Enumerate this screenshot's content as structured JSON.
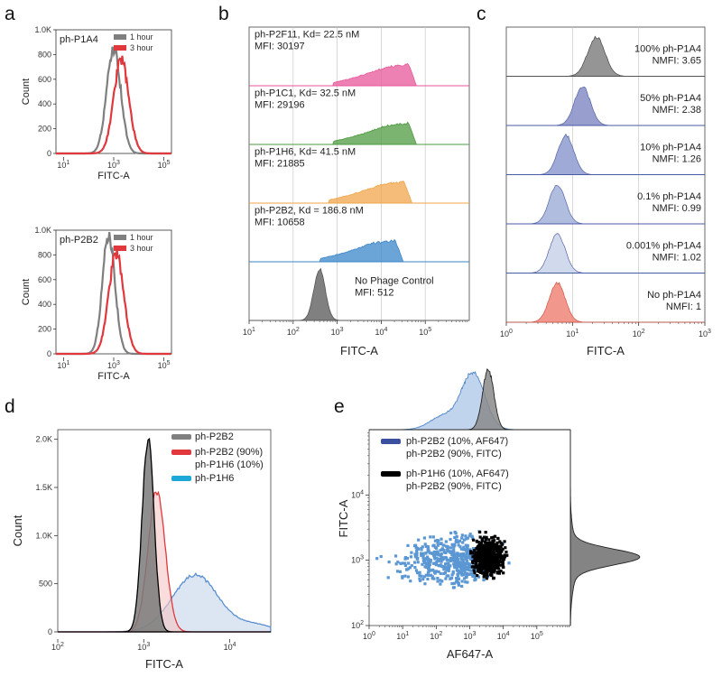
{
  "colors": {
    "gray": "#7f7f7f",
    "red": "#e0383c",
    "pink": "#e8579a",
    "green": "#4f9a41",
    "orange": "#f0a54b",
    "blue": "#3a85c9",
    "darkgray": "#555555",
    "black": "#000000",
    "scatter_blue": "#5b97d3",
    "navy": "#3c50a0"
  },
  "panel_labels": [
    "a",
    "b",
    "c",
    "d",
    "e"
  ],
  "chart_data": [
    {
      "panel": "a",
      "type": "area",
      "title": "ph-P1A4",
      "xlabel": "FITC-A",
      "ylabel": "Count",
      "xscale": "log",
      "xlim": [
        5,
        200000
      ],
      "ylim": [
        0,
        1000
      ],
      "yticks": [
        "0",
        "200",
        "400",
        "600",
        "800",
        "1.0K"
      ],
      "xticks": [
        "10^1",
        "10^3",
        "10^5"
      ],
      "legend": [
        "1 hour",
        "3 hour"
      ],
      "series": [
        {
          "name": "1 hour",
          "mean_log10": 3.0,
          "sd_log10": 0.28,
          "peak": 850
        },
        {
          "name": "3 hour",
          "mean_log10": 3.3,
          "sd_log10": 0.3,
          "peak": 760
        }
      ]
    },
    {
      "panel": "a2",
      "type": "area",
      "title": "ph-P2B2",
      "xlabel": "FITC-A",
      "ylabel": "Count",
      "xscale": "log",
      "xlim": [
        5,
        200000
      ],
      "ylim": [
        0,
        1000
      ],
      "yticks": [
        "0",
        "200",
        "400",
        "600",
        "800",
        "1.0K"
      ],
      "xticks": [
        "10^1",
        "10^3",
        "10^5"
      ],
      "legend": [
        "1 hour",
        "3 hour"
      ],
      "series": [
        {
          "name": "1 hour",
          "mean_log10": 2.8,
          "sd_log10": 0.25,
          "peak": 960
        },
        {
          "name": "3 hour",
          "mean_log10": 3.1,
          "sd_log10": 0.3,
          "peak": 810
        }
      ]
    },
    {
      "panel": "b",
      "type": "area",
      "xlabel": "FITC-A",
      "xscale": "log",
      "xlim": [
        10,
        1000000
      ],
      "xticks": [
        "10^1",
        "10^2",
        "10^3",
        "10^4",
        "10^5"
      ],
      "series": [
        {
          "name": "ph-P2F11, Kd= 22.5 nM",
          "mfi": "MFI: 30197",
          "color": "pink",
          "lo": 2.9,
          "hi": 4.8
        },
        {
          "name": "ph-P1C1, Kd= 32.5 nM",
          "mfi": "MFI: 29196",
          "color": "green",
          "lo": 2.9,
          "hi": 4.8
        },
        {
          "name": "ph-P1H6, Kd= 41.5 nM",
          "mfi": "MFI: 21885",
          "color": "orange",
          "lo": 2.8,
          "hi": 4.7
        },
        {
          "name": "ph-P2B2, Kd = 186.8 nM",
          "mfi": "MFI: 10658",
          "color": "blue",
          "lo": 2.6,
          "hi": 4.5
        },
        {
          "name": "No Phage Control",
          "mfi": "MFI: 512",
          "color": "darkgray",
          "mean_log10": 2.6,
          "sd_log10": 0.13
        }
      ]
    },
    {
      "panel": "c",
      "type": "area",
      "xlabel": "FITC-A",
      "xscale": "log",
      "xlim": [
        1,
        1000
      ],
      "xticks": [
        "10^0",
        "10^1",
        "10^2",
        "10^3"
      ],
      "series": [
        {
          "name": "100% ph-P1A4",
          "nmfi": "NMFI: 3.65",
          "color": "#8a8a8a",
          "mean_log10": 1.36
        },
        {
          "name": "50% ph-P1A4",
          "nmfi": "NMFI: 2.38",
          "color": "#8d93c9",
          "mean_log10": 1.15
        },
        {
          "name": "10% ph-P1A4",
          "nmfi": "NMFI: 1.26",
          "color": "#95a1d1",
          "mean_log10": 0.9
        },
        {
          "name": "0.1% ph-P1A4",
          "nmfi": "NMFI: 0.99",
          "color": "#a9b6db",
          "mean_log10": 0.77
        },
        {
          "name": "0.001% ph-P1A4",
          "nmfi": "NMFI: 1.02",
          "color": "#ccd6ea",
          "mean_log10": 0.77
        },
        {
          "name": "No ph-P1A4",
          "nmfi": "NMFI: 1",
          "color": "#f08c80",
          "mean_log10": 0.77
        }
      ]
    },
    {
      "panel": "d",
      "type": "area",
      "xlabel": "FITC-A",
      "ylabel": "Count",
      "xscale": "log",
      "xlim": [
        100,
        30000
      ],
      "ylim": [
        0,
        2100
      ],
      "yticks": [
        "0",
        "500",
        "1.0K",
        "1.5K",
        "2.0K"
      ],
      "xticks": [
        "10^2",
        "10^3",
        "10^4"
      ],
      "series": [
        {
          "name": "ph-P2B2",
          "color": "gray",
          "mean_log10": 3.05,
          "sd_log10": 0.07,
          "peak": 2000
        },
        {
          "name": "ph-P2B2 (90%)",
          "name2": "ph-P1H6 (10%)",
          "color": "red",
          "mean_log10": 3.15,
          "sd_log10": 0.1,
          "peak": 1450
        },
        {
          "name": "ph-P1H6",
          "color": "blue",
          "mean_log10": 3.6,
          "sd_log10": 0.27,
          "peak": 590
        }
      ]
    },
    {
      "panel": "e",
      "type": "scatter",
      "xlabel": "AF647-A",
      "ylabel": "FITC-A",
      "xscale": "log",
      "yscale": "log",
      "xlim": [
        1,
        1000000
      ],
      "ylim": [
        100,
        100000
      ],
      "xticks": [
        "10^0",
        "10^1",
        "10^2",
        "10^3",
        "10^4",
        "10^5"
      ],
      "yticks": [
        "10^2",
        "10^3",
        "10^4"
      ],
      "series": [
        {
          "name": "ph-P2B2 (10%, AF647)",
          "name2": "ph-P2B2 (90%, FITC)",
          "color": "navy",
          "x_center_log10": 2.5,
          "y_center_log10": 3.0
        },
        {
          "name": "ph-P1H6 (10%, AF647)",
          "name2": "ph-P2B2 (90%, FITC)",
          "color": "black",
          "x_center_log10": 3.55,
          "y_center_log10": 3.05
        }
      ]
    }
  ]
}
